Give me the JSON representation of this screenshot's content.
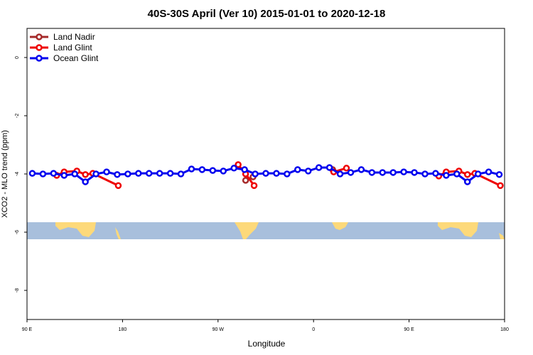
{
  "chart_data": {
    "type": "line",
    "title": "40S-30S April (Ver 10)   2015-01-01 to 2020-12-18",
    "x_label": "Longitude",
    "y_label": "XCO2 - MLO trend (ppm)",
    "xlim": [
      90,
      540
    ],
    "ylim": [
      -9,
      1
    ],
    "xticks": [
      {
        "value": 90,
        "label": "90 E"
      },
      {
        "value": 180,
        "label": "180"
      },
      {
        "value": 270,
        "label": "90 W"
      },
      {
        "value": 360,
        "label": "0"
      },
      {
        "value": 450,
        "label": "90 E"
      },
      {
        "value": 540,
        "label": "180"
      }
    ],
    "yticks": [
      0,
      -2,
      -4,
      -6,
      -8
    ],
    "legend": "top-left",
    "series": [
      {
        "name": "Land Nadir",
        "color": "#a52a2a",
        "x": [
          296,
          303,
          null,
          378
        ],
        "values": [
          -4.22,
          -4.1,
          null,
          -3.85
        ]
      },
      {
        "name": "Land Glint",
        "color": "#ee0000",
        "x": [
          118,
          125,
          137,
          145,
          152,
          176,
          null,
          289,
          296,
          304,
          null,
          379,
          391,
          null,
          478,
          485,
          497,
          505,
          512,
          536
        ],
        "values": [
          -4.05,
          -3.93,
          -3.9,
          -4.02,
          -3.98,
          -4.4,
          null,
          -3.68,
          -4.0,
          -4.4,
          null,
          -3.93,
          -3.8,
          null,
          -4.07,
          -3.93,
          -3.9,
          -4.02,
          -3.98,
          -4.4
        ]
      },
      {
        "name": "Ocean Glint",
        "color": "#0000ee",
        "x": [
          95,
          105,
          115,
          125,
          135,
          145,
          155,
          165,
          175,
          185,
          195,
          205,
          215,
          225,
          235,
          245,
          255,
          265,
          275,
          285,
          295,
          305,
          315,
          325,
          335,
          345,
          355,
          365,
          375,
          385,
          395,
          405,
          415,
          425,
          435,
          445,
          455,
          465,
          475,
          485,
          495,
          505,
          515,
          525,
          535
        ],
        "values": [
          -3.98,
          -4.0,
          -3.98,
          -4.05,
          -4.0,
          -4.27,
          -4.0,
          -3.93,
          -4.02,
          -4.0,
          -3.98,
          -3.98,
          -3.98,
          -3.98,
          -4.0,
          -3.83,
          -3.85,
          -3.88,
          -3.9,
          -3.8,
          -3.85,
          -4.0,
          -3.98,
          -3.98,
          -4.0,
          -3.85,
          -3.9,
          -3.78,
          -3.78,
          -4.0,
          -3.95,
          -3.85,
          -3.95,
          -3.95,
          -3.95,
          -3.93,
          -3.95,
          -4.0,
          -3.98,
          -4.05,
          -4.0,
          -4.27,
          -4.0,
          -3.93,
          -4.02
        ]
      }
    ]
  }
}
